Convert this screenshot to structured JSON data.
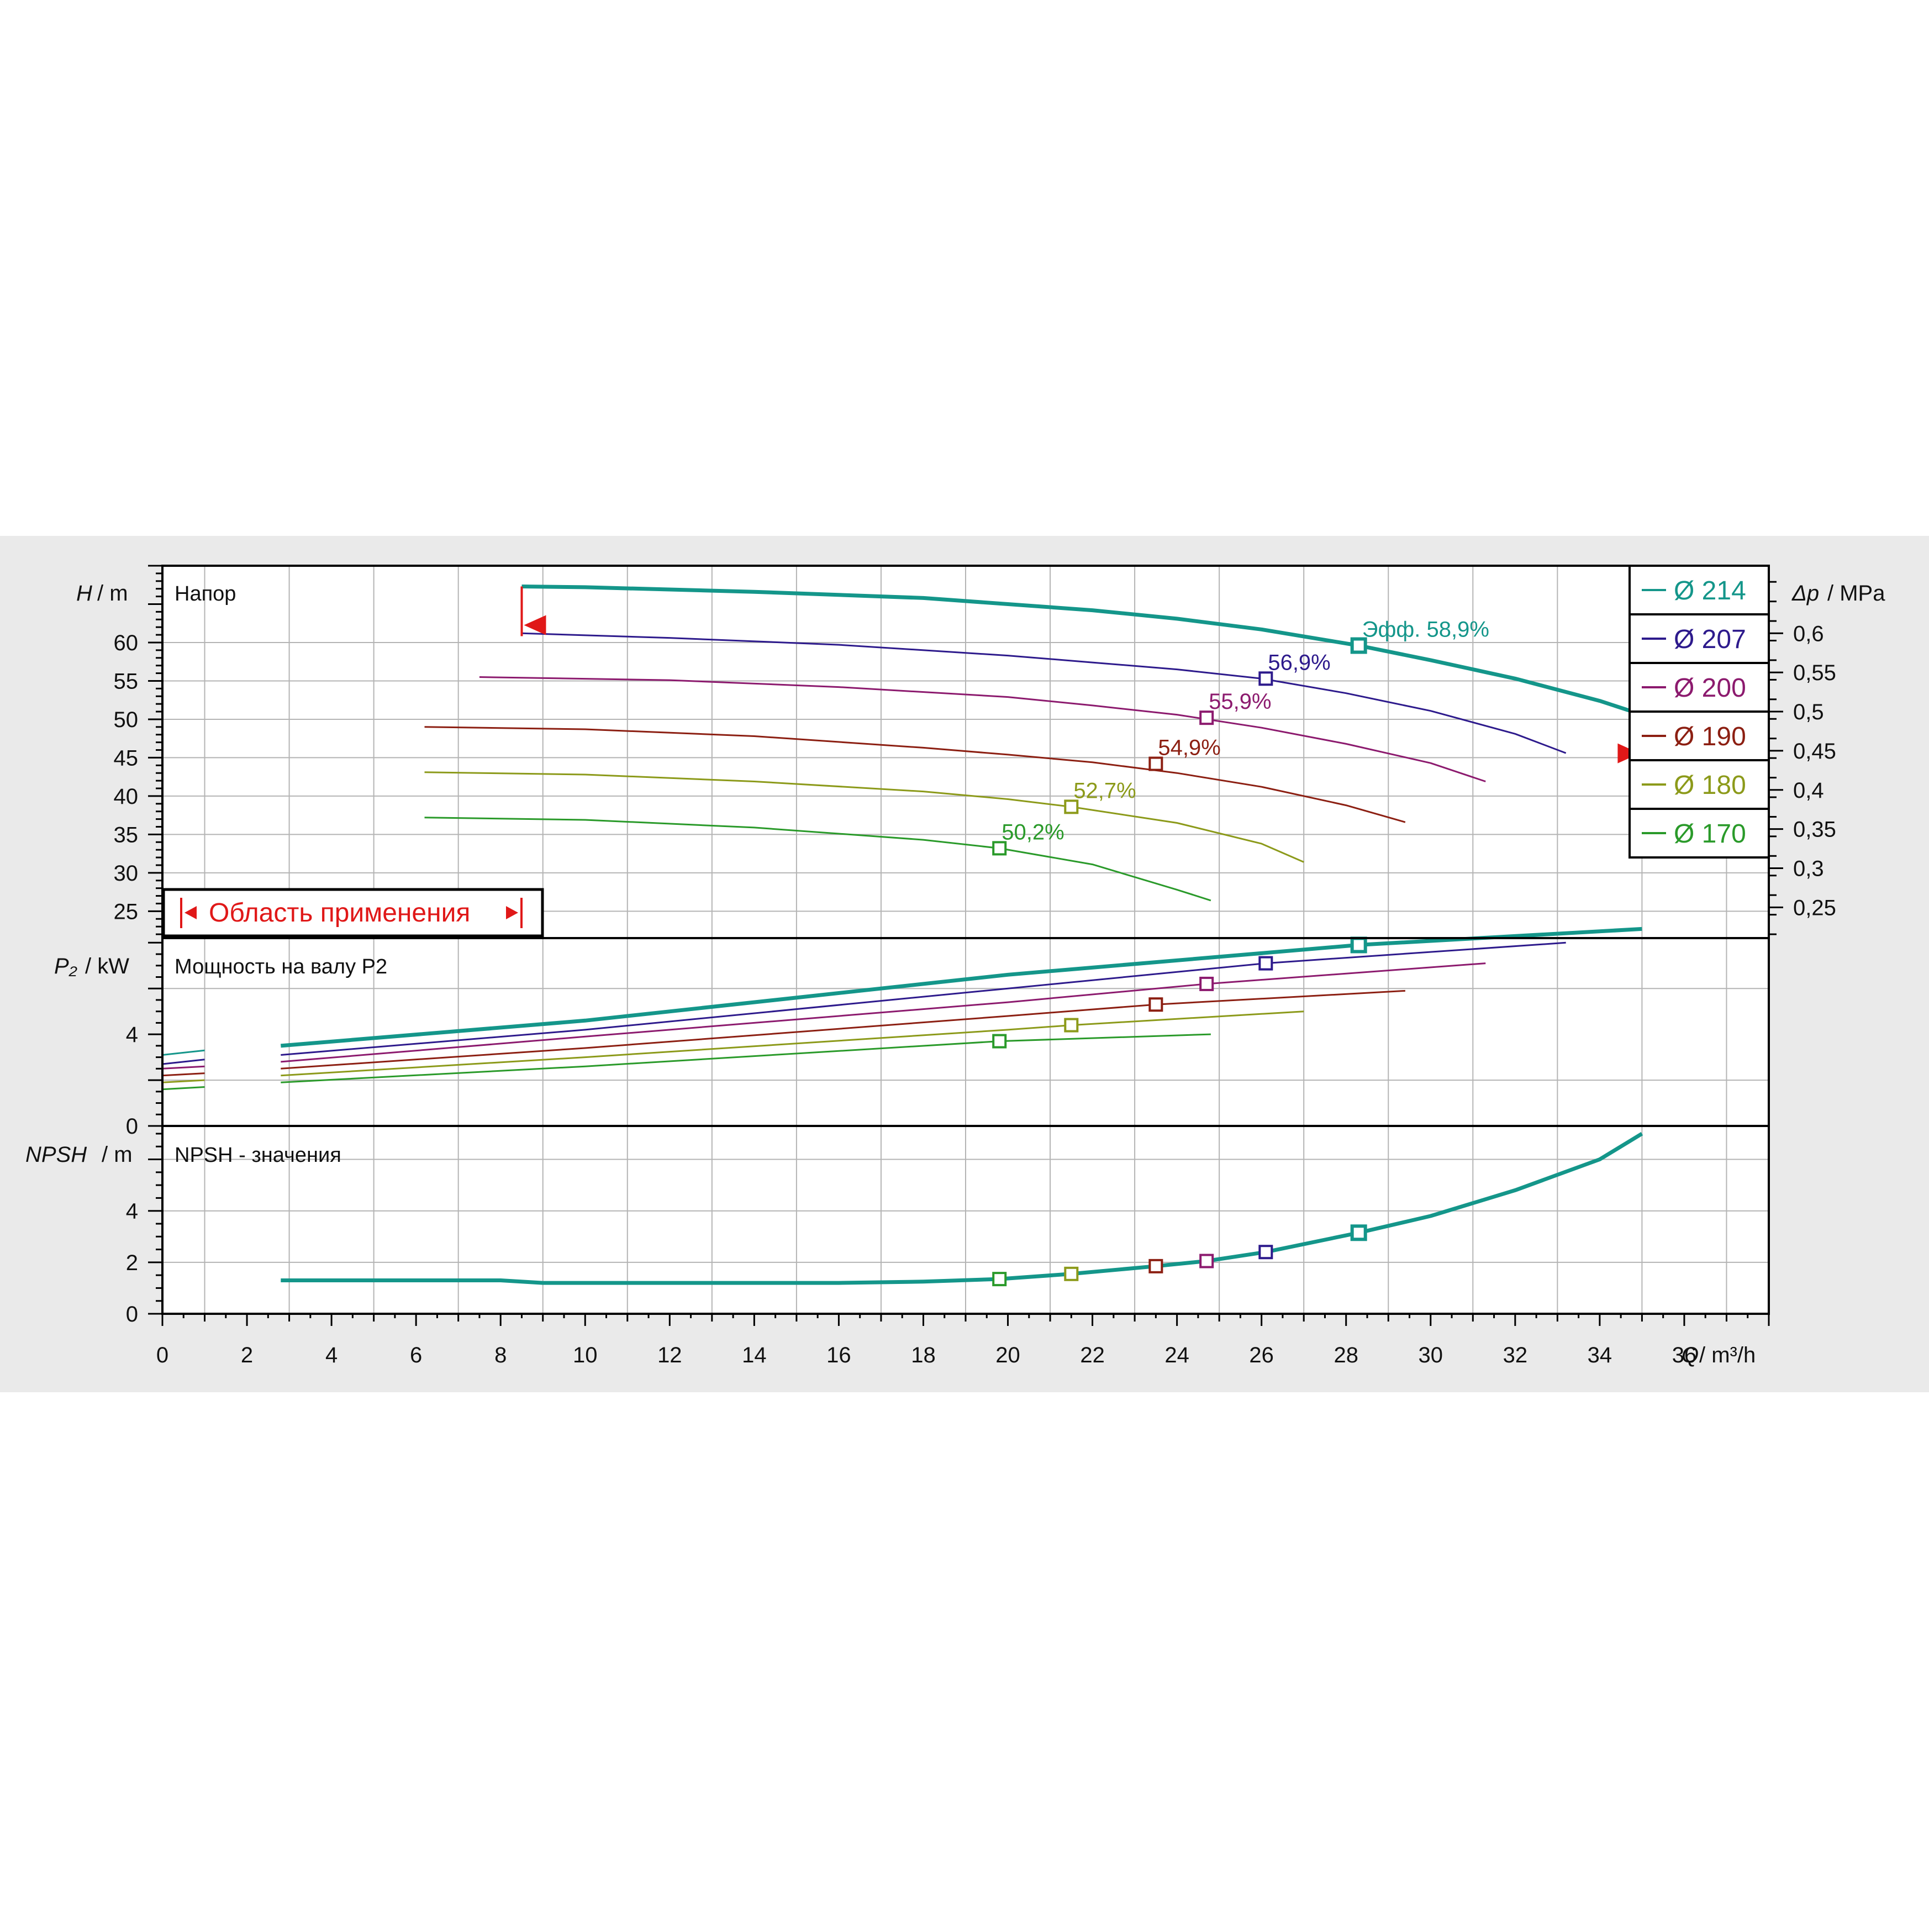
{
  "colors": {
    "panel_bg": "#eaeaea",
    "plot_bg": "#ffffff",
    "grid": "#b4b4b4",
    "frame": "#000000",
    "range_marker": "#e01818"
  },
  "labels": {
    "y_head": "H",
    "y_head_unit": "/ m",
    "y_head_title": "Напор",
    "y_dp": "Δp",
    "y_dp_unit": "/ MPa",
    "y_power": "P₂",
    "y_power_unit": "/ kW",
    "y_power_title": "Мощность на валу P2",
    "y_npsh": "NPSH",
    "y_npsh_unit": "/ m",
    "y_npsh_title": "NPSH - значения",
    "x_axis": "Q",
    "x_axis_unit": "/ m³/h",
    "application_range": "Область применения",
    "eff_prefix": "Эфф."
  },
  "chart_data": [
    {
      "type": "line",
      "title": "Напор",
      "ylabel": "H / m",
      "y2label": "Δp / MPa",
      "xlabel": "Q / m³/h",
      "xlim": [
        0,
        38
      ],
      "ylim": [
        21.5,
        70
      ],
      "x_ticks": [
        0,
        2,
        4,
        6,
        8,
        10,
        12,
        14,
        16,
        18,
        20,
        22,
        24,
        26,
        28,
        30,
        32,
        34,
        36
      ],
      "y_ticks": [
        25,
        30,
        35,
        40,
        45,
        50,
        55,
        60
      ],
      "y2_ticks": [
        "0,25",
        "0,3",
        "0,35",
        "0,4",
        "0,45",
        "0,5",
        "0,55",
        "0,6"
      ],
      "y2_tick_values": [
        25.5,
        30.6,
        35.7,
        40.8,
        45.9,
        51.0,
        56.1,
        61.2
      ],
      "grid": true,
      "legend_position": "right",
      "application_range_q": [
        8.5,
        35.0
      ],
      "series": [
        {
          "name": "Ø 214",
          "color": "#14968a",
          "bold": true,
          "dashed_until": 8.5,
          "x": [
            0,
            8.5,
            10,
            14,
            18,
            22,
            24,
            26,
            28.3,
            30,
            32,
            34,
            35
          ],
          "y": [
            67.3,
            67.3,
            67.2,
            66.6,
            65.8,
            64.2,
            63.1,
            61.7,
            59.6,
            57.7,
            55.3,
            52.4,
            50.6
          ],
          "bep": {
            "q": 28.3,
            "h": 59.6,
            "eff": "58,9%"
          }
        },
        {
          "name": "Ø 207",
          "color": "#2d1a8c",
          "dashed_until": 8.5,
          "x": [
            0,
            8.5,
            12,
            16,
            20,
            22,
            24,
            26,
            28,
            30,
            32,
            33.2
          ],
          "y": [
            61.2,
            61.2,
            60.6,
            59.7,
            58.3,
            57.4,
            56.5,
            55.3,
            53.4,
            51.1,
            48.1,
            45.6
          ],
          "bep": {
            "q": 26.1,
            "h": 55.3,
            "eff": "56,9%"
          }
        },
        {
          "name": "Ø 200",
          "color": "#8c1a6e",
          "dashed_until": 7.5,
          "x": [
            0,
            7.5,
            12,
            16,
            20,
            22,
            24,
            26,
            28,
            30,
            31.3
          ],
          "y": [
            55.5,
            55.5,
            55.1,
            54.2,
            52.9,
            51.8,
            50.6,
            48.9,
            46.8,
            44.3,
            41.9
          ],
          "bep": {
            "q": 24.7,
            "h": 50.2,
            "eff": "55,9%"
          }
        },
        {
          "name": "Ø 190",
          "color": "#8c1f12",
          "dashed_until": 6.2,
          "x": [
            0,
            6.2,
            10,
            14,
            18,
            20,
            22,
            24,
            26,
            28,
            29.4
          ],
          "y": [
            49.0,
            49.0,
            48.7,
            47.8,
            46.3,
            45.4,
            44.4,
            43.0,
            41.2,
            38.8,
            36.6
          ],
          "bep": {
            "q": 23.5,
            "h": 44.2,
            "eff": "54,9%"
          }
        },
        {
          "name": "Ø 180",
          "color": "#8c9a1a",
          "dashed_until": 6.2,
          "x": [
            0,
            6.2,
            10,
            14,
            18,
            20,
            21.5,
            24,
            26,
            27
          ],
          "y": [
            43.1,
            43.1,
            42.8,
            41.9,
            40.6,
            39.6,
            38.6,
            36.5,
            33.8,
            31.4
          ],
          "bep": {
            "q": 21.5,
            "h": 38.6,
            "eff": "52,7%"
          }
        },
        {
          "name": "Ø 170",
          "color": "#2a9a2a",
          "dashed_until": 6.2,
          "x": [
            0,
            6.2,
            10,
            14,
            18,
            19.8,
            22,
            24,
            24.8
          ],
          "y": [
            37.2,
            37.2,
            36.9,
            35.9,
            34.3,
            33.2,
            31.1,
            27.8,
            26.4
          ],
          "bep": {
            "q": 19.8,
            "h": 33.2,
            "eff": "50,2%"
          }
        }
      ]
    },
    {
      "type": "line",
      "title": "Мощность на валу P2",
      "ylabel": "P₂ / kW",
      "xlim": [
        0,
        38
      ],
      "ylim": [
        0,
        8.2
      ],
      "y_ticks": [
        0,
        4
      ],
      "grid": true,
      "series": [
        {
          "name": "Ø 214",
          "x": [
            0,
            1,
            2.8,
            10,
            20,
            28.3,
            35
          ],
          "y": [
            3.1,
            3.3,
            3.5,
            4.6,
            6.6,
            7.9,
            8.6
          ],
          "marker_q": 28.3
        },
        {
          "name": "Ø 207",
          "x": [
            0,
            1,
            2.8,
            10,
            20,
            26.1,
            33.2
          ],
          "y": [
            2.7,
            2.9,
            3.1,
            4.2,
            6.0,
            7.1,
            8.0
          ],
          "marker_q": 26.1
        },
        {
          "name": "Ø 200",
          "x": [
            0,
            1,
            2.8,
            10,
            20,
            24.7,
            31.3
          ],
          "y": [
            2.5,
            2.6,
            2.8,
            3.9,
            5.4,
            6.2,
            7.1
          ],
          "marker_q": 24.7
        },
        {
          "name": "Ø 190",
          "x": [
            0,
            1,
            2.8,
            10,
            20,
            23.5,
            29.4
          ],
          "y": [
            2.2,
            2.3,
            2.5,
            3.4,
            4.8,
            5.3,
            5.9
          ],
          "marker_q": 23.5
        },
        {
          "name": "Ø 180",
          "x": [
            0,
            1,
            2.8,
            10,
            20,
            21.5,
            27
          ],
          "y": [
            1.9,
            2.0,
            2.2,
            3.0,
            4.2,
            4.4,
            5.0
          ],
          "marker_q": 21.5
        },
        {
          "name": "Ø 170",
          "x": [
            0,
            1,
            2.8,
            10,
            19.8,
            24.8
          ],
          "y": [
            1.6,
            1.7,
            1.9,
            2.6,
            3.7,
            4.0
          ],
          "marker_q": 19.8
        }
      ]
    },
    {
      "type": "line",
      "title": "NPSH - значения",
      "ylabel": "NPSH / m",
      "xlim": [
        0,
        38
      ],
      "ylim": [
        0,
        7.3
      ],
      "y_ticks": [
        0,
        2,
        4
      ],
      "grid": true,
      "series": [
        {
          "name": "Ø 214",
          "x": [
            2.8,
            8,
            9,
            12,
            16,
            18,
            19.8,
            21.5,
            23.5,
            24.7,
            26.1,
            28.3,
            30,
            32,
            34,
            35
          ],
          "y": [
            1.3,
            1.3,
            1.2,
            1.2,
            1.2,
            1.25,
            1.35,
            1.55,
            1.85,
            2.05,
            2.4,
            3.15,
            3.8,
            4.8,
            6.0,
            7.0
          ]
        }
      ],
      "markers": [
        {
          "q": 19.8,
          "v": 1.35,
          "series": "Ø 170"
        },
        {
          "q": 21.5,
          "v": 1.55,
          "series": "Ø 180"
        },
        {
          "q": 23.5,
          "v": 1.85,
          "series": "Ø 190"
        },
        {
          "q": 24.7,
          "v": 2.05,
          "series": "Ø 200"
        },
        {
          "q": 26.1,
          "v": 2.4,
          "series": "Ø 207"
        },
        {
          "q": 28.3,
          "v": 3.15,
          "series": "Ø 214"
        }
      ]
    }
  ]
}
